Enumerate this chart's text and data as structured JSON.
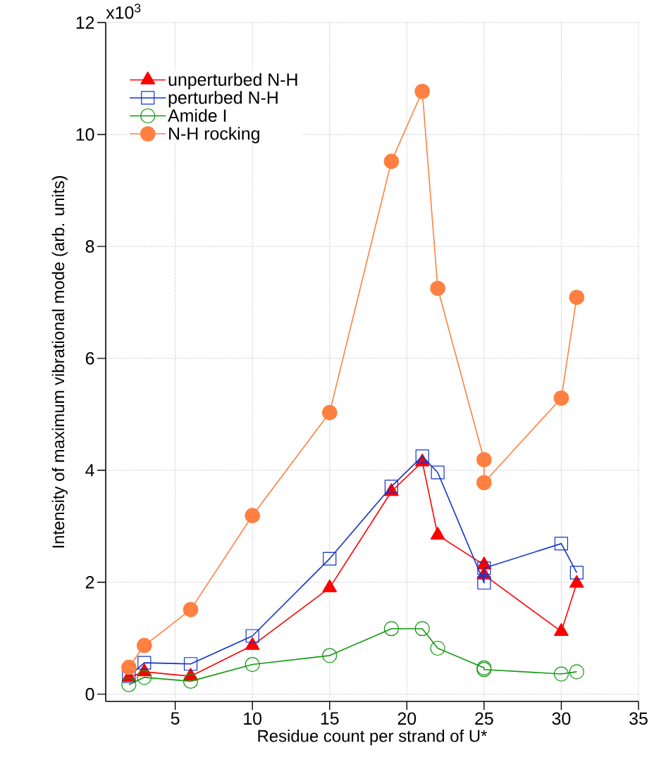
{
  "chart_data": {
    "type": "line",
    "xlabel": "Residue count per strand of U*",
    "ylabel": "Intensity of maximum vibrational mode (arb. units)",
    "xlim": [
      0.5,
      35
    ],
    "ylim": [
      -0.13,
      12
    ],
    "xticks": [
      5,
      10,
      15,
      20,
      25,
      30,
      35
    ],
    "annotations": [
      "x10$^{3}$"
    ],
    "yticks": [
      0,
      2,
      4,
      6,
      8,
      10,
      12
    ],
    "grid": true,
    "legend": "top left",
    "line_style": "solid",
    "series": [
      {
        "name": "unperturbed N-H",
        "color": "#ff0000",
        "marker": "triangle",
        "x": [
          2,
          3,
          6,
          10,
          15,
          19,
          21,
          22,
          25,
          25,
          30,
          31
        ],
        "values": [
          0.3,
          0.4,
          0.32,
          0.87,
          1.9,
          3.62,
          4.15,
          2.84,
          2.31,
          2.13,
          1.12,
          1.98
        ]
      },
      {
        "name": "perturbed N-H",
        "color": "#1133cc",
        "marker": "square",
        "x": [
          2,
          3,
          6,
          10,
          15,
          19,
          21,
          22,
          25,
          25,
          30,
          31
        ],
        "values": [
          0.32,
          0.56,
          0.54,
          1.04,
          2.42,
          3.71,
          4.25,
          3.96,
          1.99,
          2.25,
          2.69,
          2.17
        ]
      },
      {
        "name": "Amide I",
        "color": "#119911",
        "marker": "circle",
        "x": [
          2,
          3,
          6,
          10,
          15,
          19,
          21,
          22,
          25,
          25,
          30,
          31
        ],
        "values": [
          0.17,
          0.3,
          0.23,
          0.53,
          0.69,
          1.17,
          1.17,
          0.82,
          0.47,
          0.44,
          0.36,
          0.4
        ]
      },
      {
        "name": "N-H rocking",
        "color": "#ff8040",
        "marker": "filled circle",
        "x": [
          2,
          3,
          6,
          10,
          15,
          19,
          21,
          22,
          25,
          25,
          30,
          31
        ],
        "values": [
          0.48,
          0.87,
          1.51,
          3.19,
          5.03,
          9.52,
          10.77,
          7.25,
          4.19,
          3.78,
          5.29,
          7.09
        ]
      }
    ]
  }
}
